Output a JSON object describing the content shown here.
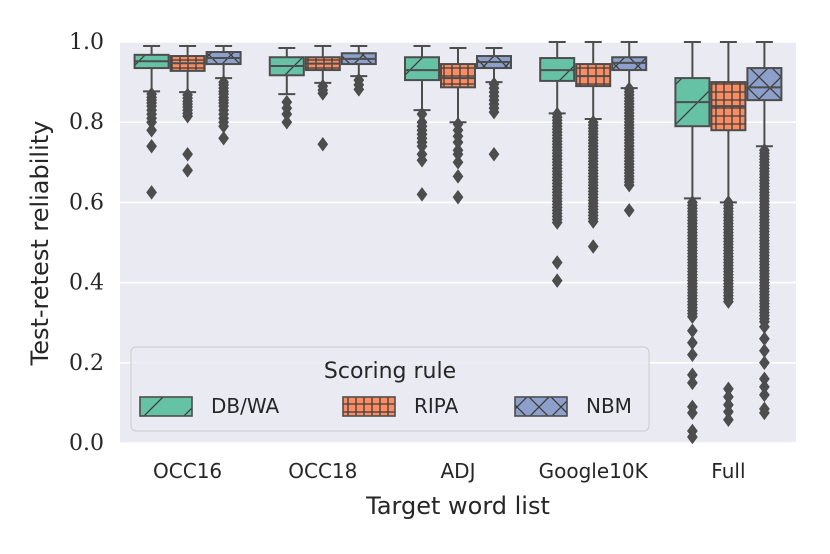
{
  "chart_data": {
    "type": "box",
    "xlabel": "Target word list",
    "ylabel": "Test-retest reliability",
    "ylim": [
      0.0,
      1.0
    ],
    "yticks": [
      "0.0",
      "0.2",
      "0.4",
      "0.6",
      "0.8",
      "1.0"
    ],
    "categories": [
      "OCC16",
      "OCC18",
      "ADJ",
      "Google10K",
      "Full"
    ],
    "grid": true,
    "legend": {
      "title": "Scoring rule",
      "placement": "lower-left",
      "entries": [
        "DB/WA",
        "RIPA",
        "NBM"
      ]
    },
    "series": [
      {
        "name": "DB/WA",
        "color": "#66c2a5",
        "hatch": "diagonal",
        "boxes": [
          {
            "min": 0.877,
            "q1": 0.935,
            "median": 0.952,
            "q3": 0.968,
            "max": 0.99,
            "outliers": [
              0.87,
              0.862,
              0.855,
              0.848,
              0.84,
              0.83,
              0.82,
              0.81,
              0.8,
              0.78,
              0.74,
              0.625
            ]
          },
          {
            "min": 0.87,
            "q1": 0.917,
            "median": 0.94,
            "q3": 0.962,
            "max": 0.985,
            "outliers": [
              0.85,
              0.835,
              0.82,
              0.8
            ]
          },
          {
            "min": 0.83,
            "q1": 0.905,
            "median": 0.93,
            "q3": 0.962,
            "max": 0.99,
            "outliers": [
              0.82,
              0.8,
              0.79,
              0.78,
              0.77,
              0.76,
              0.75,
              0.74,
              0.72,
              0.705,
              0.62
            ]
          },
          {
            "min": 0.822,
            "q1": 0.903,
            "median": 0.93,
            "q3": 0.96,
            "max": 1.0,
            "outliers_range": [
              0.545,
              0.82
            ],
            "outliers": [
              0.45,
              0.405
            ]
          },
          {
            "min": 0.61,
            "q1": 0.79,
            "median": 0.85,
            "q3": 0.91,
            "max": 1.0,
            "outliers_range": [
              0.31,
              0.6
            ],
            "outliers": [
              0.28,
              0.25,
              0.22,
              0.17,
              0.15,
              0.09,
              0.075,
              0.03,
              0.015
            ]
          }
        ]
      },
      {
        "name": "RIPA",
        "color": "#fc8d62",
        "hatch": "grid",
        "boxes": [
          {
            "min": 0.875,
            "q1": 0.928,
            "median": 0.947,
            "q3": 0.965,
            "max": 0.99,
            "outliers": [
              0.868,
              0.86,
              0.852,
              0.845,
              0.838,
              0.83,
              0.822,
              0.815,
              0.72,
              0.68
            ]
          },
          {
            "min": 0.898,
            "q1": 0.93,
            "median": 0.946,
            "q3": 0.962,
            "max": 0.99,
            "outliers": [
              0.89,
              0.88,
              0.872,
              0.745
            ]
          },
          {
            "min": 0.8,
            "q1": 0.887,
            "median": 0.91,
            "q3": 0.945,
            "max": 0.985,
            "outliers": [
              0.795,
              0.78,
              0.765,
              0.75,
              0.73,
              0.72,
              0.7,
              0.665,
              0.613
            ]
          },
          {
            "min": 0.808,
            "q1": 0.89,
            "median": 0.915,
            "q3": 0.945,
            "max": 1.0,
            "outliers_range": [
              0.55,
              0.8
            ],
            "outliers": [
              0.49
            ]
          },
          {
            "min": 0.6,
            "q1": 0.78,
            "median": 0.84,
            "q3": 0.9,
            "max": 1.0,
            "outliers_range": [
              0.35,
              0.6
            ],
            "outliers": [
              0.135,
              0.115,
              0.095,
              0.078,
              0.058
            ]
          }
        ]
      },
      {
        "name": "NBM",
        "color": "#8da0cb",
        "hatch": "cross",
        "boxes": [
          {
            "min": 0.91,
            "q1": 0.945,
            "median": 0.96,
            "q3": 0.975,
            "max": 0.99,
            "outliers": [
              0.9,
              0.893,
              0.885,
              0.877,
              0.87,
              0.862,
              0.855,
              0.848,
              0.84,
              0.83,
              0.82,
              0.81,
              0.8,
              0.79,
              0.76
            ]
          },
          {
            "min": 0.915,
            "q1": 0.945,
            "median": 0.958,
            "q3": 0.972,
            "max": 0.99,
            "outliers": [
              0.905,
              0.893,
              0.882
            ]
          },
          {
            "min": 0.9,
            "q1": 0.935,
            "median": 0.95,
            "q3": 0.965,
            "max": 0.985,
            "outliers": [
              0.895,
              0.885,
              0.875,
              0.865,
              0.855,
              0.845,
              0.835,
              0.825,
              0.72
            ]
          },
          {
            "min": 0.885,
            "q1": 0.93,
            "median": 0.948,
            "q3": 0.962,
            "max": 1.0,
            "outliers_range": [
              0.64,
              0.883
            ],
            "outliers": [
              0.58
            ]
          },
          {
            "min": 0.74,
            "q1": 0.855,
            "median": 0.887,
            "q3": 0.935,
            "max": 1.0,
            "outliers_range": [
              0.3,
              0.73
            ],
            "outliers": [
              0.29,
              0.26,
              0.23,
              0.2,
              0.16,
              0.14,
              0.12,
              0.085,
              0.075
            ]
          }
        ]
      }
    ]
  }
}
